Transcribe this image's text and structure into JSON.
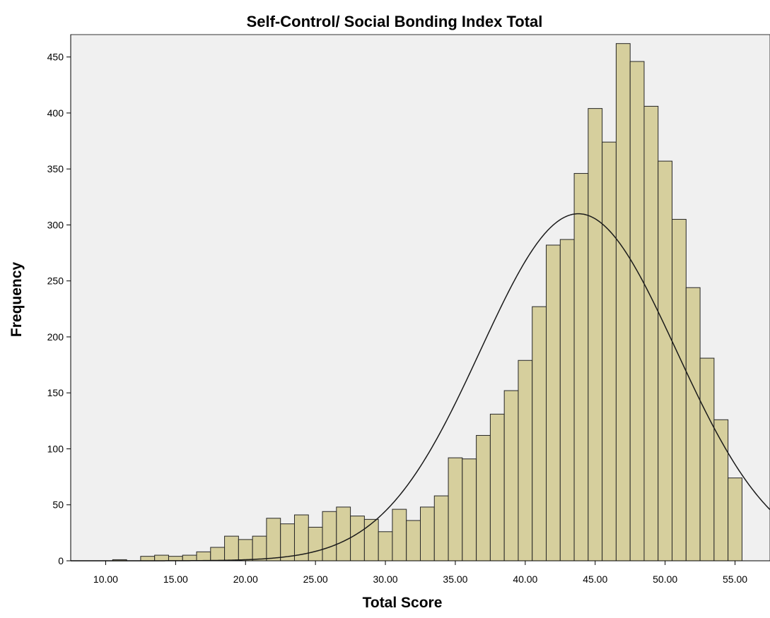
{
  "chart_data": {
    "type": "bar",
    "title": "Self-Control/ Social Bonding Index Total",
    "xlabel": "Total Score",
    "ylabel": "Frequency",
    "xlim": [
      7.5,
      57.5
    ],
    "ylim": [
      0,
      470
    ],
    "x_ticks": [
      "10.00",
      "15.00",
      "20.00",
      "25.00",
      "30.00",
      "35.00",
      "40.00",
      "45.00",
      "50.00",
      "55.00"
    ],
    "y_ticks": [
      "0",
      "50",
      "100",
      "150",
      "200",
      "250",
      "300",
      "350",
      "400",
      "450"
    ],
    "bin_width": 1,
    "bin_centers": [
      11,
      13,
      14,
      15,
      16,
      17,
      18,
      19,
      20,
      21,
      22,
      23,
      24,
      25,
      26,
      27,
      28,
      29,
      30,
      31,
      32,
      33,
      34,
      35,
      36,
      37,
      38,
      39,
      40,
      41,
      42,
      43,
      44,
      45,
      46,
      47,
      48,
      49,
      50,
      51,
      52,
      53,
      54,
      55
    ],
    "values": [
      1,
      4,
      5,
      4,
      5,
      8,
      12,
      22,
      19,
      22,
      38,
      33,
      41,
      30,
      44,
      48,
      40,
      37,
      26,
      46,
      36,
      48,
      58,
      92,
      91,
      112,
      131,
      152,
      179,
      227,
      282,
      287,
      346,
      404,
      374,
      462,
      446,
      406,
      357,
      305,
      244,
      181,
      126,
      74
    ],
    "normal_curve": {
      "mean": 43.8,
      "sd": 7.0,
      "peak": 310
    },
    "grid": false,
    "bar_color": "#d6cf9d",
    "bar_edge_color": "#262626",
    "plot_background": "#f0f0f0"
  }
}
